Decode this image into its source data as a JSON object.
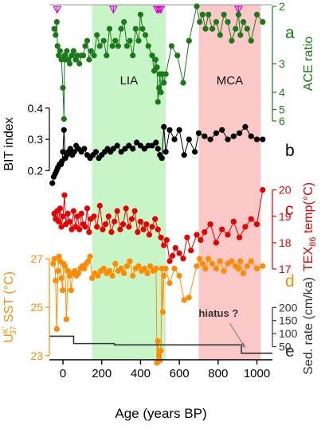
{
  "chart_data": {
    "type": "line",
    "title": "",
    "x_axis": {
      "label": "Age (years BP)",
      "range": [
        -70,
        1080
      ],
      "ticks": [
        0,
        200,
        400,
        600,
        800,
        1000
      ]
    },
    "bands": [
      {
        "label": "LIA",
        "from": 150,
        "to": 530,
        "color": "#c8f5c8"
      },
      {
        "label": "MCA",
        "from": 700,
        "to": 1020,
        "color": "#fbc8c8"
      }
    ],
    "markers": {
      "color": "#dd00dd",
      "x": [
        -30,
        260,
        485,
        495,
        505,
        905
      ]
    },
    "panels": [
      {
        "letter": "a",
        "ylabel": "ACE ratio",
        "axis_side": "right",
        "color": "#1a7a1a",
        "range": [
          2,
          6
        ],
        "ticks": [
          2,
          3,
          4,
          5,
          6
        ],
        "axis_scale": "reciprocal",
        "x": [
          -45,
          -38,
          -32,
          -28,
          -22,
          -15,
          -8,
          0,
          5,
          8,
          12,
          20,
          28,
          35,
          45,
          55,
          65,
          75,
          85,
          95,
          105,
          115,
          125,
          135,
          145,
          160,
          175,
          190,
          210,
          225,
          240,
          255,
          270,
          285,
          300,
          315,
          330,
          345,
          360,
          375,
          390,
          400,
          410,
          425,
          440,
          460,
          470,
          478,
          485,
          490,
          495,
          500,
          505,
          512,
          520,
          530,
          560,
          590,
          620,
          650,
          690,
          705,
          720,
          735,
          750,
          770,
          790,
          810,
          830,
          850,
          870,
          890,
          905,
          915,
          930,
          950,
          970,
          1000,
          1030
        ],
        "values": [
          2.3,
          2.4,
          2.2,
          2.6,
          2.8,
          2.7,
          2.9,
          3.8,
          5.8,
          2.8,
          2.9,
          2.7,
          2.9,
          3.0,
          2.8,
          2.7,
          2.9,
          2.8,
          3.0,
          2.8,
          2.8,
          2.6,
          2.5,
          2.9,
          2.7,
          2.8,
          2.4,
          2.6,
          2.5,
          2.8,
          2.3,
          2.6,
          2.5,
          2.6,
          2.3,
          2.2,
          2.6,
          2.5,
          2.8,
          2.3,
          2.5,
          2.1,
          2.3,
          2.4,
          2.6,
          2.8,
          3.2,
          2.9,
          3.1,
          4.5,
          3.8,
          3.3,
          4.0,
          3.3,
          3.6,
          3.3,
          2.6,
          2.8,
          3.6,
          2.5,
          2.0,
          2.2,
          2.1,
          2.3,
          2.1,
          2.3,
          2.2,
          2.4,
          2.1,
          2.2,
          2.5,
          2.3,
          2.1,
          2.4,
          2.2,
          2.3,
          2.5,
          2.1,
          2.2
        ]
      },
      {
        "letter": "b",
        "ylabel": "BIT index",
        "axis_side": "left",
        "color": "#000000",
        "range": [
          0.15,
          0.42
        ],
        "ticks": [
          0.2,
          0.3,
          0.4
        ],
        "x": [
          -55,
          -48,
          -40,
          -33,
          -26,
          -18,
          -10,
          -5,
          0,
          5,
          12,
          20,
          28,
          38,
          48,
          58,
          68,
          80,
          95,
          110,
          125,
          140,
          155,
          170,
          185,
          200,
          215,
          230,
          245,
          260,
          280,
          300,
          320,
          340,
          360,
          380,
          400,
          420,
          440,
          460,
          480,
          490,
          500,
          510,
          520,
          530,
          550,
          575,
          600,
          625,
          650,
          680,
          700,
          730,
          760,
          790,
          820,
          850,
          880,
          910,
          940,
          970,
          1000,
          1030
        ],
        "values": [
          0.16,
          0.18,
          0.19,
          0.2,
          0.21,
          0.22,
          0.22,
          0.23,
          0.26,
          0.33,
          0.24,
          0.25,
          0.26,
          0.27,
          0.25,
          0.26,
          0.28,
          0.27,
          0.26,
          0.27,
          0.25,
          0.24,
          0.25,
          0.26,
          0.24,
          0.25,
          0.26,
          0.27,
          0.26,
          0.27,
          0.28,
          0.26,
          0.27,
          0.28,
          0.27,
          0.29,
          0.28,
          0.27,
          0.28,
          0.28,
          0.29,
          0.27,
          0.25,
          0.24,
          0.34,
          0.26,
          0.33,
          0.3,
          0.33,
          0.25,
          0.3,
          0.26,
          0.32,
          0.31,
          0.3,
          0.32,
          0.33,
          0.3,
          0.31,
          0.32,
          0.34,
          0.31,
          0.3,
          0.3
        ]
      },
      {
        "letter": "c",
        "ylabel": "TEX86 temp(°C)",
        "axis_side": "right",
        "color": "#e60000",
        "range": [
          17,
          20.2
        ],
        "ticks": [
          17,
          18,
          19,
          20
        ],
        "x": [
          -45,
          -38,
          -30,
          -22,
          -15,
          -8,
          0,
          8,
          15,
          25,
          35,
          45,
          55,
          65,
          75,
          85,
          95,
          105,
          115,
          125,
          135,
          145,
          160,
          175,
          190,
          205,
          220,
          235,
          250,
          265,
          280,
          295,
          310,
          325,
          340,
          355,
          370,
          385,
          400,
          415,
          430,
          445,
          460,
          475,
          490,
          505,
          520,
          535,
          550,
          565,
          580,
          600,
          620,
          640,
          660,
          690,
          710,
          730,
          760,
          790,
          820,
          850,
          880,
          910,
          940,
          970,
          1000,
          1030
        ],
        "values": [
          19.1,
          18.9,
          19.2,
          18.8,
          19.3,
          18.6,
          19.0,
          19.8,
          18.7,
          19.1,
          18.8,
          18.5,
          19.2,
          18.6,
          19.0,
          18.5,
          19.1,
          18.7,
          18.6,
          19.3,
          18.4,
          18.9,
          19.0,
          18.6,
          19.4,
          18.5,
          18.7,
          19.0,
          18.4,
          18.8,
          19.2,
          18.5,
          18.7,
          19.3,
          18.6,
          18.9,
          19.2,
          18.4,
          18.8,
          18.5,
          18.7,
          18.3,
          18.6,
          18.9,
          18.5,
          18.2,
          17.9,
          18.1,
          17.3,
          17.5,
          17.8,
          17.6,
          17.4,
          18.2,
          17.7,
          18.3,
          18.1,
          18.4,
          18.7,
          18.0,
          18.5,
          18.3,
          18.8,
          18.2,
          18.6,
          18.9,
          18.7,
          20.0
        ]
      },
      {
        "letter": "d",
        "ylabel": "UK'37 SST (°C)",
        "axis_side": "left",
        "color": "#ff8c00",
        "range": [
          22.5,
          27.5
        ],
        "ticks": [
          23,
          25,
          27
        ],
        "x": [
          -50,
          -44,
          -38,
          -32,
          -26,
          -20,
          -14,
          -8,
          -2,
          4,
          10,
          18,
          26,
          34,
          42,
          50,
          60,
          70,
          80,
          90,
          100,
          110,
          120,
          130,
          140,
          150,
          165,
          180,
          195,
          210,
          225,
          240,
          255,
          270,
          285,
          300,
          315,
          330,
          345,
          360,
          375,
          390,
          405,
          420,
          435,
          450,
          465,
          480,
          485,
          490,
          495,
          500,
          505,
          510,
          515,
          520,
          530,
          550,
          575,
          600,
          625,
          650,
          690,
          705,
          720,
          735,
          750,
          770,
          790,
          810,
          830,
          850,
          870,
          890,
          905,
          915,
          930,
          950,
          970,
          1000,
          1030
        ],
        "values": [
          26.8,
          27.0,
          26.1,
          24.1,
          26.5,
          27.1,
          26.9,
          26.2,
          25.7,
          26.8,
          26.7,
          24.5,
          26.5,
          26.3,
          25.7,
          26.4,
          26.5,
          26.3,
          26.4,
          26.6,
          26.7,
          26.6,
          26.8,
          26.9,
          27.1,
          26.2,
          26.4,
          26.3,
          26.5,
          26.6,
          26.4,
          26.5,
          26.3,
          26.8,
          26.5,
          26.6,
          26.4,
          26.7,
          26.9,
          26.3,
          26.6,
          26.7,
          26.5,
          26.6,
          26.4,
          26.7,
          26.5,
          26.6,
          22.7,
          23.6,
          23.0,
          22.8,
          23.2,
          26.6,
          24.8,
          26.3,
          26.6,
          26.0,
          26.6,
          26.3,
          25.3,
          25.4,
          26.7,
          27.0,
          26.8,
          26.6,
          27.0,
          26.8,
          26.6,
          26.9,
          26.5,
          26.8,
          26.9,
          26.7,
          26.6,
          26.9,
          26.4,
          26.7,
          26.9,
          26.6,
          26.7
        ]
      },
      {
        "letter": "e",
        "ylabel": "Sed. rate (cm/ka)",
        "axis_side": "right",
        "color": "#333333",
        "type": "step",
        "range": [
          0,
          210
        ],
        "ticks": [
          50,
          100,
          150,
          200
        ],
        "steps": [
          {
            "from": -70,
            "to": 55,
            "value": 90
          },
          {
            "from": 55,
            "to": 265,
            "value": 62
          },
          {
            "from": 265,
            "to": 920,
            "value": 57
          },
          {
            "from": 920,
            "to": 1080,
            "value": 25
          }
        ],
        "annotation": {
          "text": "hiatus ?",
          "x": 950,
          "y": 30
        }
      }
    ]
  }
}
